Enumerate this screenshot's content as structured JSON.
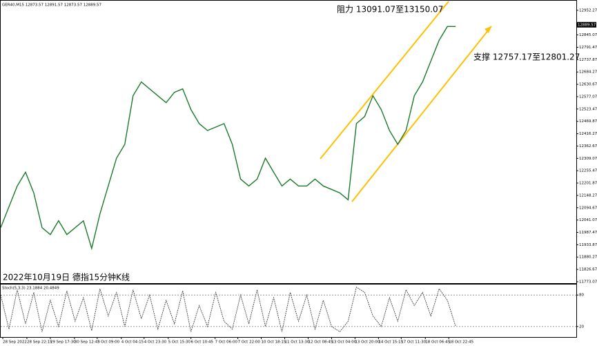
{
  "chart_data": [
    {
      "type": "line",
      "title": "GER40,M15  12873.57 12891.57 12873.57 12889.57",
      "annotations": [
        "阻力 13091.07至13150.07",
        "支撑 12757.17至12801.27",
        "2022年10月19日 德指15分钟K线"
      ],
      "current_price": 12889.57,
      "color": "#1a7a2a",
      "x": [
        0,
        12,
        24,
        36,
        48,
        60,
        72,
        84,
        96,
        108,
        120,
        132,
        144,
        156,
        168,
        180,
        192,
        204,
        216,
        228,
        240,
        252,
        264,
        276,
        288,
        300,
        312,
        324,
        336,
        348,
        360,
        372,
        384,
        396,
        408,
        420,
        432,
        444,
        456,
        468,
        480,
        492,
        504,
        516,
        528,
        540,
        552,
        564,
        576,
        588,
        600,
        612,
        624,
        636,
        648,
        660
      ],
      "values": [
        12008,
        12099,
        12189,
        12249,
        12159,
        12008,
        11978,
        12038,
        11978,
        12008,
        12038,
        11918,
        12068,
        12189,
        12310,
        12370,
        12581,
        12641,
        12611,
        12581,
        12551,
        12596,
        12611,
        12521,
        12460,
        12430,
        12445,
        12460,
        12370,
        12219,
        12189,
        12219,
        12310,
        12249,
        12189,
        12219,
        12189,
        12189,
        12219,
        12189,
        12174,
        12159,
        12129,
        12460,
        12491,
        12581,
        12521,
        12430,
        12370,
        12430,
        12581,
        12641,
        12732,
        12822,
        12882,
        12882
      ],
      "xlim": [
        0,
        835
      ],
      "ylim": [
        11767,
        12994
      ],
      "xticks": [
        {
          "value": 3,
          "label": "28 Sep 2022"
        },
        {
          "value": 38,
          "label": "28 Sep 22:15"
        },
        {
          "value": 72,
          "label": "29 Sep 17:30"
        },
        {
          "value": 107,
          "label": "30 Sep 12:45"
        },
        {
          "value": 140,
          "label": "3 Oct 09:00"
        },
        {
          "value": 175,
          "label": "4 Oct 04:15"
        },
        {
          "value": 208,
          "label": "4 Oct 23:30"
        },
        {
          "value": 243,
          "label": "5 Oct 15:30"
        },
        {
          "value": 276,
          "label": "6 Oct 10:45"
        },
        {
          "value": 311,
          "label": "7 Oct 06:00"
        },
        {
          "value": 344,
          "label": "7 Oct 22:00"
        },
        {
          "value": 378,
          "label": "10 Oct 18:15"
        },
        {
          "value": 412,
          "label": "11 Oct 13:30"
        },
        {
          "value": 446,
          "label": "12 Oct 08:45"
        },
        {
          "value": 480,
          "label": "13 Oct 04:00"
        },
        {
          "value": 514,
          "label": "13 Oct 20:00"
        },
        {
          "value": 548,
          "label": "14 Oct 15:15"
        },
        {
          "value": 581,
          "label": "17 Oct 11:30"
        },
        {
          "value": 616,
          "label": "18 Oct 06:45"
        },
        {
          "value": 650,
          "label": "18 Oct 22:45"
        }
      ],
      "yticks": [
        11773.07,
        11826.67,
        11880.27,
        11933.87,
        11987.47,
        12041.07,
        12094.67,
        12148.27,
        12201.87,
        12255.47,
        12309.07,
        12362.67,
        12416.27,
        12469.87,
        12523.47,
        12577.07,
        12630.67,
        12684.27,
        12737.87,
        12791.47,
        12845.07,
        12952.27
      ]
    },
    {
      "type": "line",
      "title": "Stoch(5,3,3) 23.1884 20.4849",
      "color": "#444",
      "x": [
        0,
        12,
        24,
        36,
        48,
        60,
        72,
        84,
        96,
        108,
        120,
        132,
        144,
        156,
        168,
        180,
        192,
        204,
        216,
        228,
        240,
        252,
        264,
        276,
        288,
        300,
        312,
        324,
        336,
        348,
        360,
        372,
        384,
        396,
        408,
        420,
        432,
        444,
        456,
        468,
        480,
        492,
        504,
        516,
        528,
        540,
        552,
        564,
        576,
        588,
        600,
        612,
        624,
        636,
        648,
        660
      ],
      "values": [
        80,
        15,
        90,
        25,
        85,
        10,
        70,
        20,
        88,
        30,
        75,
        12,
        92,
        40,
        85,
        20,
        90,
        35,
        80,
        15,
        70,
        25,
        88,
        10,
        60,
        20,
        85,
        30,
        15,
        80,
        25,
        90,
        20,
        75,
        10,
        85,
        30,
        80,
        15,
        70,
        20,
        10,
        30,
        95,
        85,
        40,
        20,
        75,
        30,
        90,
        60,
        85,
        40,
        92,
        70,
        20
      ],
      "xlim": [
        0,
        835
      ],
      "ylim": [
        0,
        100
      ],
      "yticks": [
        80,
        20
      ]
    }
  ]
}
